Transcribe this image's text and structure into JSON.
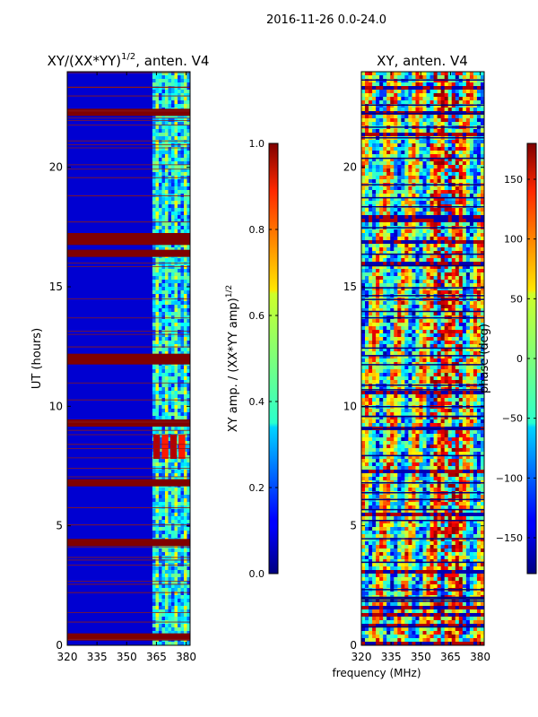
{
  "suptitle": "2016-11-26 0.0-24.0",
  "chart_data": [
    {
      "type": "heatmap",
      "title_main": "XY/(XX*YY)",
      "title_sup": "1/2",
      "title_rest": ", anten. V4",
      "xlabel": "",
      "ylabel": "UT (hours)",
      "x_range": [
        320,
        382
      ],
      "y_range": [
        0,
        24
      ],
      "x_ticks": [
        320,
        335,
        350,
        365,
        380
      ],
      "y_ticks": [
        0,
        5,
        10,
        15,
        20
      ],
      "colorbar": {
        "label_main": "XY amp. / (XX*YY amp)",
        "label_sup": "1/2",
        "range": [
          0.0,
          1.0
        ],
        "ticks": [
          "0.0",
          "0.2",
          "0.4",
          "0.6",
          "0.8",
          "1.0"
        ],
        "colormap": "jet"
      },
      "features": {
        "flagged_bands_hours": [
          0.35,
          4.3,
          6.8,
          9.3,
          11.9,
          12.05,
          16.4,
          16.9,
          17.1,
          22.3
        ],
        "high_value_block": {
          "x": [
            363,
            380
          ],
          "hours": [
            7.8,
            8.8
          ],
          "value": 0.95
        },
        "mid_value_channels_x": [
          363,
          382
        ]
      }
    },
    {
      "type": "heatmap",
      "title": "XY, anten. V4",
      "xlabel": "frequency (MHz)",
      "ylabel": "",
      "x_range": [
        320,
        382
      ],
      "y_range": [
        0,
        24
      ],
      "x_ticks": [
        320,
        335,
        350,
        365,
        380
      ],
      "y_ticks": [
        0,
        5,
        10,
        15,
        20
      ],
      "colorbar": {
        "label": "phase (deg)",
        "range": [
          -180,
          180
        ],
        "ticks": [
          "−150",
          "−100",
          "−50",
          "0",
          "50",
          "100",
          "150"
        ],
        "colormap": "jet"
      }
    }
  ]
}
